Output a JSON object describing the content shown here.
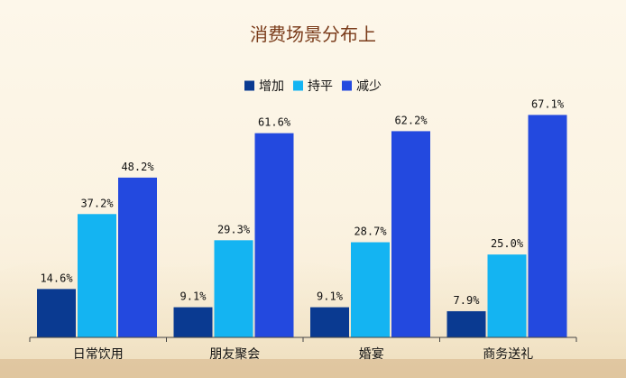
{
  "chart_data": {
    "type": "bar",
    "title": "消费场景分布上",
    "categories": [
      "日常饮用",
      "朋友聚会",
      "婚宴",
      "商务送礼"
    ],
    "series": [
      {
        "name": "增加",
        "values": [
          14.6,
          9.1,
          9.1,
          7.9
        ],
        "labels": [
          "14.6%",
          "9.1%",
          "9.1%",
          "7.9%"
        ],
        "color": "#0a3a91"
      },
      {
        "name": "持平",
        "values": [
          37.2,
          29.3,
          28.7,
          25.0
        ],
        "labels": [
          "37.2%",
          "29.3%",
          "28.7%",
          "25.0%"
        ],
        "color": "#14b4f2"
      },
      {
        "name": "减少",
        "values": [
          48.2,
          61.6,
          62.2,
          67.1
        ],
        "labels": [
          "48.2%",
          "61.6%",
          "62.2%",
          "67.1%"
        ],
        "color": "#2349df"
      }
    ],
    "ylim": [
      0,
      80
    ],
    "legend": "top-center",
    "grid": false
  }
}
